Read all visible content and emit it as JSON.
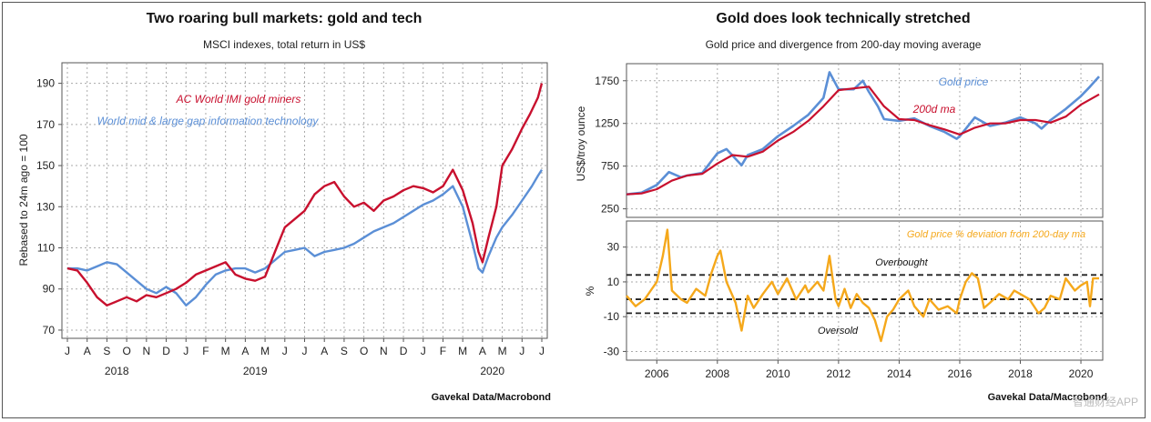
{
  "chart_data": [
    {
      "type": "line",
      "title": "Two roaring bull markets: gold and tech",
      "subtitle": "MSCI indexes, total return in US$",
      "ylabel": "Rebased to 24m ago = 100",
      "ylim": [
        66,
        200
      ],
      "yticks": [
        70,
        90,
        110,
        130,
        150,
        170,
        190
      ],
      "xlim": [
        0,
        24
      ],
      "month_ticks": [
        "J",
        "A",
        "S",
        "O",
        "N",
        "D",
        "J",
        "F",
        "M",
        "A",
        "M",
        "J",
        "J",
        "A",
        "S",
        "O",
        "N",
        "D",
        "J",
        "F",
        "M",
        "A",
        "M",
        "J",
        "J"
      ],
      "year_labels": [
        {
          "label": "2018",
          "x": 2.5
        },
        {
          "label": "2019",
          "x": 9.5
        },
        {
          "label": "2020",
          "x": 21.5
        }
      ],
      "source": "Gavekal Data/Macrobond",
      "series": [
        {
          "name": "AC World IMI gold miners",
          "color": "#c8102e",
          "points": [
            [
              0,
              100
            ],
            [
              0.5,
              99
            ],
            [
              1,
              93
            ],
            [
              1.5,
              86
            ],
            [
              2,
              82
            ],
            [
              2.5,
              84
            ],
            [
              3,
              86
            ],
            [
              3.5,
              84
            ],
            [
              4,
              87
            ],
            [
              4.5,
              86
            ],
            [
              5,
              88
            ],
            [
              5.5,
              90
            ],
            [
              6,
              93
            ],
            [
              6.5,
              97
            ],
            [
              7,
              99
            ],
            [
              7.5,
              101
            ],
            [
              8,
              103
            ],
            [
              8.5,
              97
            ],
            [
              9,
              95
            ],
            [
              9.5,
              94
            ],
            [
              10,
              96
            ],
            [
              10.5,
              108
            ],
            [
              11,
              120
            ],
            [
              11.5,
              124
            ],
            [
              12,
              128
            ],
            [
              12.5,
              136
            ],
            [
              13,
              140
            ],
            [
              13.5,
              142
            ],
            [
              14,
              135
            ],
            [
              14.5,
              130
            ],
            [
              15,
              132
            ],
            [
              15.5,
              128
            ],
            [
              16,
              133
            ],
            [
              16.5,
              135
            ],
            [
              17,
              138
            ],
            [
              17.5,
              140
            ],
            [
              18,
              139
            ],
            [
              18.5,
              137
            ],
            [
              19,
              140
            ],
            [
              19.5,
              148
            ],
            [
              20,
              138
            ],
            [
              20.5,
              122
            ],
            [
              20.8,
              108
            ],
            [
              21,
              103
            ],
            [
              21.3,
              115
            ],
            [
              21.7,
              130
            ],
            [
              22,
              150
            ],
            [
              22.5,
              158
            ],
            [
              23,
              168
            ],
            [
              23.4,
              175
            ],
            [
              23.8,
              183
            ],
            [
              24,
              190
            ]
          ]
        },
        {
          "name": "World mid & large gap information technology",
          "color": "#5b8fd6",
          "points": [
            [
              0,
              100
            ],
            [
              0.5,
              100
            ],
            [
              1,
              99
            ],
            [
              1.5,
              101
            ],
            [
              2,
              103
            ],
            [
              2.5,
              102
            ],
            [
              3,
              98
            ],
            [
              3.5,
              94
            ],
            [
              4,
              90
            ],
            [
              4.5,
              88
            ],
            [
              5,
              91
            ],
            [
              5.5,
              88
            ],
            [
              6,
              82
            ],
            [
              6.5,
              86
            ],
            [
              7,
              92
            ],
            [
              7.5,
              97
            ],
            [
              8,
              99
            ],
            [
              8.5,
              100
            ],
            [
              9,
              100
            ],
            [
              9.5,
              98
            ],
            [
              10,
              100
            ],
            [
              10.5,
              104
            ],
            [
              11,
              108
            ],
            [
              11.5,
              109
            ],
            [
              12,
              110
            ],
            [
              12.5,
              106
            ],
            [
              13,
              108
            ],
            [
              13.5,
              109
            ],
            [
              14,
              110
            ],
            [
              14.5,
              112
            ],
            [
              15,
              115
            ],
            [
              15.5,
              118
            ],
            [
              16,
              120
            ],
            [
              16.5,
              122
            ],
            [
              17,
              125
            ],
            [
              17.5,
              128
            ],
            [
              18,
              131
            ],
            [
              18.5,
              133
            ],
            [
              19,
              136
            ],
            [
              19.5,
              140
            ],
            [
              20,
              130
            ],
            [
              20.5,
              112
            ],
            [
              20.8,
              100
            ],
            [
              21,
              98
            ],
            [
              21.3,
              106
            ],
            [
              21.7,
              115
            ],
            [
              22,
              120
            ],
            [
              22.5,
              126
            ],
            [
              23,
              133
            ],
            [
              23.5,
              140
            ],
            [
              23.8,
              145
            ],
            [
              24,
              148
            ]
          ]
        }
      ]
    },
    {
      "type": "line",
      "title": "Gold does look technically stretched",
      "subtitle": "Gold price and divergence from 200-day moving average",
      "ylabel": "US$/troy ounce",
      "ylim": [
        150,
        1950
      ],
      "yticks": [
        250,
        750,
        1250,
        1750
      ],
      "xlim": [
        2005,
        2020.6
      ],
      "series": [
        {
          "name": "Gold price",
          "color": "#5b8fd6",
          "points": [
            [
              2005,
              420
            ],
            [
              2005.5,
              440
            ],
            [
              2006,
              530
            ],
            [
              2006.4,
              680
            ],
            [
              2006.8,
              620
            ],
            [
              2007,
              640
            ],
            [
              2007.5,
              670
            ],
            [
              2008,
              900
            ],
            [
              2008.3,
              950
            ],
            [
              2008.8,
              760
            ],
            [
              2009,
              880
            ],
            [
              2009.5,
              950
            ],
            [
              2010,
              1100
            ],
            [
              2010.5,
              1220
            ],
            [
              2011,
              1350
            ],
            [
              2011.5,
              1550
            ],
            [
              2011.7,
              1850
            ],
            [
              2012,
              1650
            ],
            [
              2012.5,
              1650
            ],
            [
              2012.8,
              1750
            ],
            [
              2013,
              1620
            ],
            [
              2013.3,
              1450
            ],
            [
              2013.5,
              1300
            ],
            [
              2014,
              1280
            ],
            [
              2014.5,
              1310
            ],
            [
              2015,
              1220
            ],
            [
              2015.5,
              1150
            ],
            [
              2015.9,
              1070
            ],
            [
              2016,
              1100
            ],
            [
              2016.5,
              1320
            ],
            [
              2017,
              1220
            ],
            [
              2017.5,
              1260
            ],
            [
              2018,
              1320
            ],
            [
              2018.5,
              1250
            ],
            [
              2018.7,
              1190
            ],
            [
              2019,
              1290
            ],
            [
              2019.5,
              1420
            ],
            [
              2020,
              1570
            ],
            [
              2020.3,
              1680
            ],
            [
              2020.6,
              1800
            ]
          ]
        },
        {
          "name": "200d ma",
          "color": "#c8102e",
          "points": [
            [
              2005,
              420
            ],
            [
              2005.5,
              430
            ],
            [
              2006,
              480
            ],
            [
              2006.5,
              580
            ],
            [
              2007,
              640
            ],
            [
              2007.5,
              660
            ],
            [
              2008,
              780
            ],
            [
              2008.5,
              880
            ],
            [
              2009,
              860
            ],
            [
              2009.5,
              920
            ],
            [
              2010,
              1050
            ],
            [
              2010.5,
              1150
            ],
            [
              2011,
              1280
            ],
            [
              2011.5,
              1450
            ],
            [
              2012,
              1640
            ],
            [
              2012.5,
              1660
            ],
            [
              2013,
              1680
            ],
            [
              2013.5,
              1450
            ],
            [
              2014,
              1300
            ],
            [
              2014.5,
              1290
            ],
            [
              2015,
              1230
            ],
            [
              2015.5,
              1180
            ],
            [
              2016,
              1120
            ],
            [
              2016.5,
              1200
            ],
            [
              2017,
              1250
            ],
            [
              2017.5,
              1250
            ],
            [
              2018,
              1290
            ],
            [
              2018.5,
              1290
            ],
            [
              2019,
              1260
            ],
            [
              2019.5,
              1330
            ],
            [
              2020,
              1470
            ],
            [
              2020.6,
              1590
            ]
          ]
        }
      ],
      "annotations": [
        "Gold price",
        "200d ma"
      ]
    },
    {
      "type": "line",
      "title": "Gold price % deviation from 200-day ma",
      "ylabel": "%",
      "ylim": [
        -35,
        45
      ],
      "yticks": [
        -30,
        -10,
        10,
        30
      ],
      "xlim": [
        2005,
        2020.6
      ],
      "xticks": [
        2006,
        2008,
        2010,
        2012,
        2014,
        2016,
        2018,
        2020
      ],
      "reference_lines": [
        {
          "value": 14,
          "label": "Overbought"
        },
        {
          "value": 0,
          "label": ""
        },
        {
          "value": -8,
          "label": "Oversold"
        }
      ],
      "source": "Gavekal Data/Macrobond",
      "series": [
        {
          "name": "Gold price % deviation from 200-day ma",
          "color": "#f5a81b",
          "points": [
            [
              2005,
              2
            ],
            [
              2005.3,
              -4
            ],
            [
              2005.6,
              0
            ],
            [
              2005.8,
              5
            ],
            [
              2006,
              10
            ],
            [
              2006.2,
              25
            ],
            [
              2006.35,
              40
            ],
            [
              2006.5,
              5
            ],
            [
              2006.8,
              0
            ],
            [
              2007,
              -2
            ],
            [
              2007.3,
              6
            ],
            [
              2007.6,
              2
            ],
            [
              2007.8,
              15
            ],
            [
              2008,
              25
            ],
            [
              2008.1,
              28
            ],
            [
              2008.3,
              10
            ],
            [
              2008.6,
              -2
            ],
            [
              2008.8,
              -18
            ],
            [
              2009,
              2
            ],
            [
              2009.2,
              -5
            ],
            [
              2009.5,
              3
            ],
            [
              2009.8,
              10
            ],
            [
              2010,
              3
            ],
            [
              2010.3,
              12
            ],
            [
              2010.6,
              0
            ],
            [
              2010.9,
              8
            ],
            [
              2011,
              4
            ],
            [
              2011.3,
              10
            ],
            [
              2011.5,
              5
            ],
            [
              2011.7,
              25
            ],
            [
              2011.9,
              0
            ],
            [
              2012,
              -4
            ],
            [
              2012.2,
              6
            ],
            [
              2012.4,
              -5
            ],
            [
              2012.6,
              3
            ],
            [
              2012.8,
              -2
            ],
            [
              2013,
              -5
            ],
            [
              2013.2,
              -12
            ],
            [
              2013.4,
              -24
            ],
            [
              2013.6,
              -10
            ],
            [
              2013.8,
              -6
            ],
            [
              2014,
              0
            ],
            [
              2014.3,
              5
            ],
            [
              2014.5,
              -4
            ],
            [
              2014.8,
              -10
            ],
            [
              2015,
              0
            ],
            [
              2015.3,
              -6
            ],
            [
              2015.6,
              -4
            ],
            [
              2015.9,
              -8
            ],
            [
              2016,
              0
            ],
            [
              2016.2,
              10
            ],
            [
              2016.4,
              15
            ],
            [
              2016.6,
              12
            ],
            [
              2016.8,
              -5
            ],
            [
              2017,
              -2
            ],
            [
              2017.3,
              3
            ],
            [
              2017.6,
              0
            ],
            [
              2017.8,
              5
            ],
            [
              2018,
              3
            ],
            [
              2018.3,
              0
            ],
            [
              2018.6,
              -8
            ],
            [
              2018.8,
              -5
            ],
            [
              2019,
              2
            ],
            [
              2019.3,
              0
            ],
            [
              2019.5,
              12
            ],
            [
              2019.8,
              5
            ],
            [
              2020,
              8
            ],
            [
              2020.2,
              10
            ],
            [
              2020.3,
              -4
            ],
            [
              2020.4,
              12
            ],
            [
              2020.6,
              12
            ]
          ]
        }
      ]
    }
  ],
  "watermark": "智通财经APP"
}
